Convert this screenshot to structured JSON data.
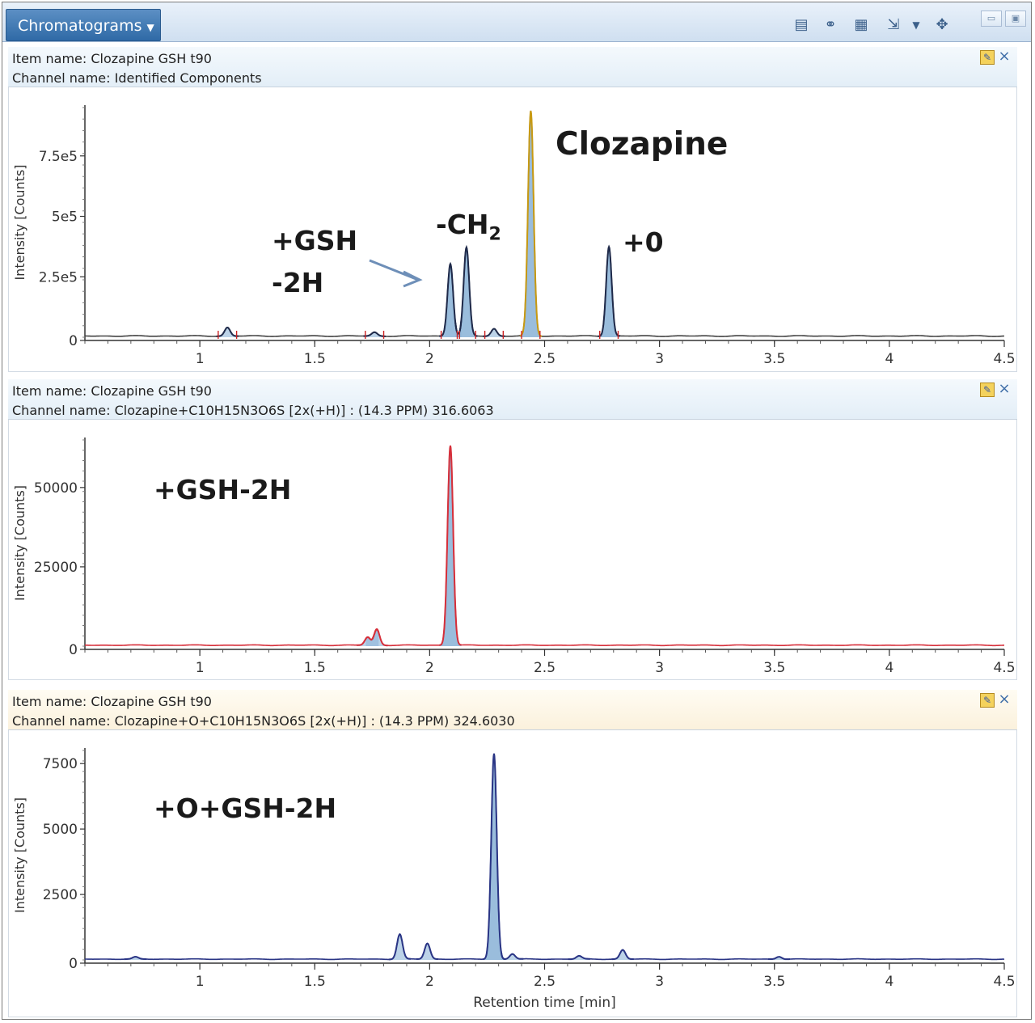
{
  "toolbar": {
    "menu_label": "Chromatograms",
    "icons": [
      "report-icon",
      "link-icon",
      "table-icon",
      "export-icon",
      "move-icon"
    ]
  },
  "panels": [
    {
      "item_name": "Item name: Clozapine GSH t90",
      "channel_name": "Channel name: Identified Components",
      "header_style": "blue",
      "y_label": "Intensity [Counts]",
      "y_ticks": [
        "0",
        "2.5e5",
        "5e5",
        "7.5e5"
      ],
      "x_ticks": [
        "1",
        "1.5",
        "2",
        "2.5",
        "3",
        "3.5",
        "4",
        "4.5"
      ],
      "annotations": {
        "gsh_line1": "+GSH",
        "gsh_line2": "-2H",
        "ch2": "-CH",
        "ch2_sub": "2",
        "clozapine": "Clozapine",
        "plus_o": "+0"
      }
    },
    {
      "item_name": "Item name: Clozapine GSH t90",
      "channel_name": "Channel name: Clozapine+C10H15N3O6S [2x(+H)] : (14.3 PPM) 316.6063",
      "header_style": "blue",
      "y_label": "Intensity [Counts]",
      "y_ticks": [
        "0",
        "25000",
        "50000"
      ],
      "x_ticks": [
        "1",
        "1.5",
        "2",
        "2.5",
        "3",
        "3.5",
        "4",
        "4.5"
      ],
      "annotations": {
        "label": "+GSH-2H"
      }
    },
    {
      "item_name": "Item name: Clozapine GSH t90",
      "channel_name": "Channel name: Clozapine+O+C10H15N3O6S [2x(+H)] : (14.3 PPM) 324.6030",
      "header_style": "cream",
      "y_label": "Intensity [Counts]",
      "y_ticks": [
        "0",
        "2500",
        "5000",
        "7500"
      ],
      "x_ticks": [
        "1",
        "1.5",
        "2",
        "2.5",
        "3",
        "3.5",
        "4",
        "4.5"
      ],
      "x_label": "Retention time [min]",
      "annotations": {
        "label": "+O+GSH-2H"
      }
    }
  ],
  "chart_data": [
    {
      "type": "line",
      "xlim": [
        0.5,
        4.5
      ],
      "ylim": [
        0,
        950000
      ],
      "ylabel": "Intensity [Counts]",
      "colors": {
        "trace": "#444444",
        "fill": "#8fb6d8",
        "peak_outline": "#1f2a4a",
        "main_peak": "#c89a12",
        "markers": "#cc2222"
      },
      "peaks": [
        {
          "x": 1.12,
          "y": 35000
        },
        {
          "x": 1.76,
          "y": 15000
        },
        {
          "x": 2.09,
          "y": 300000
        },
        {
          "x": 2.16,
          "y": 365000
        },
        {
          "x": 2.28,
          "y": 30000
        },
        {
          "x": 2.44,
          "y": 930000
        },
        {
          "x": 2.78,
          "y": 370000
        }
      ]
    },
    {
      "type": "line",
      "xlim": [
        0.5,
        4.5
      ],
      "ylim": [
        0,
        65000
      ],
      "ylabel": "Intensity [Counts]",
      "colors": {
        "trace": "#d62f3a",
        "fill": "#8fb6d8"
      },
      "peaks": [
        {
          "x": 1.73,
          "y": 2500
        },
        {
          "x": 1.77,
          "y": 5000
        },
        {
          "x": 2.09,
          "y": 63000
        }
      ]
    },
    {
      "type": "line",
      "xlim": [
        0.5,
        4.5
      ],
      "ylim": [
        0,
        8000
      ],
      "xlabel": "Retention time [min]",
      "ylabel": "Intensity [Counts]",
      "colors": {
        "trace": "#2a3585",
        "fill": "#8fb6d8"
      },
      "peaks": [
        {
          "x": 0.72,
          "y": 80
        },
        {
          "x": 1.87,
          "y": 950
        },
        {
          "x": 1.99,
          "y": 600
        },
        {
          "x": 2.28,
          "y": 7850
        },
        {
          "x": 2.36,
          "y": 200
        },
        {
          "x": 2.65,
          "y": 120
        },
        {
          "x": 2.84,
          "y": 350
        },
        {
          "x": 3.52,
          "y": 100
        }
      ]
    }
  ]
}
